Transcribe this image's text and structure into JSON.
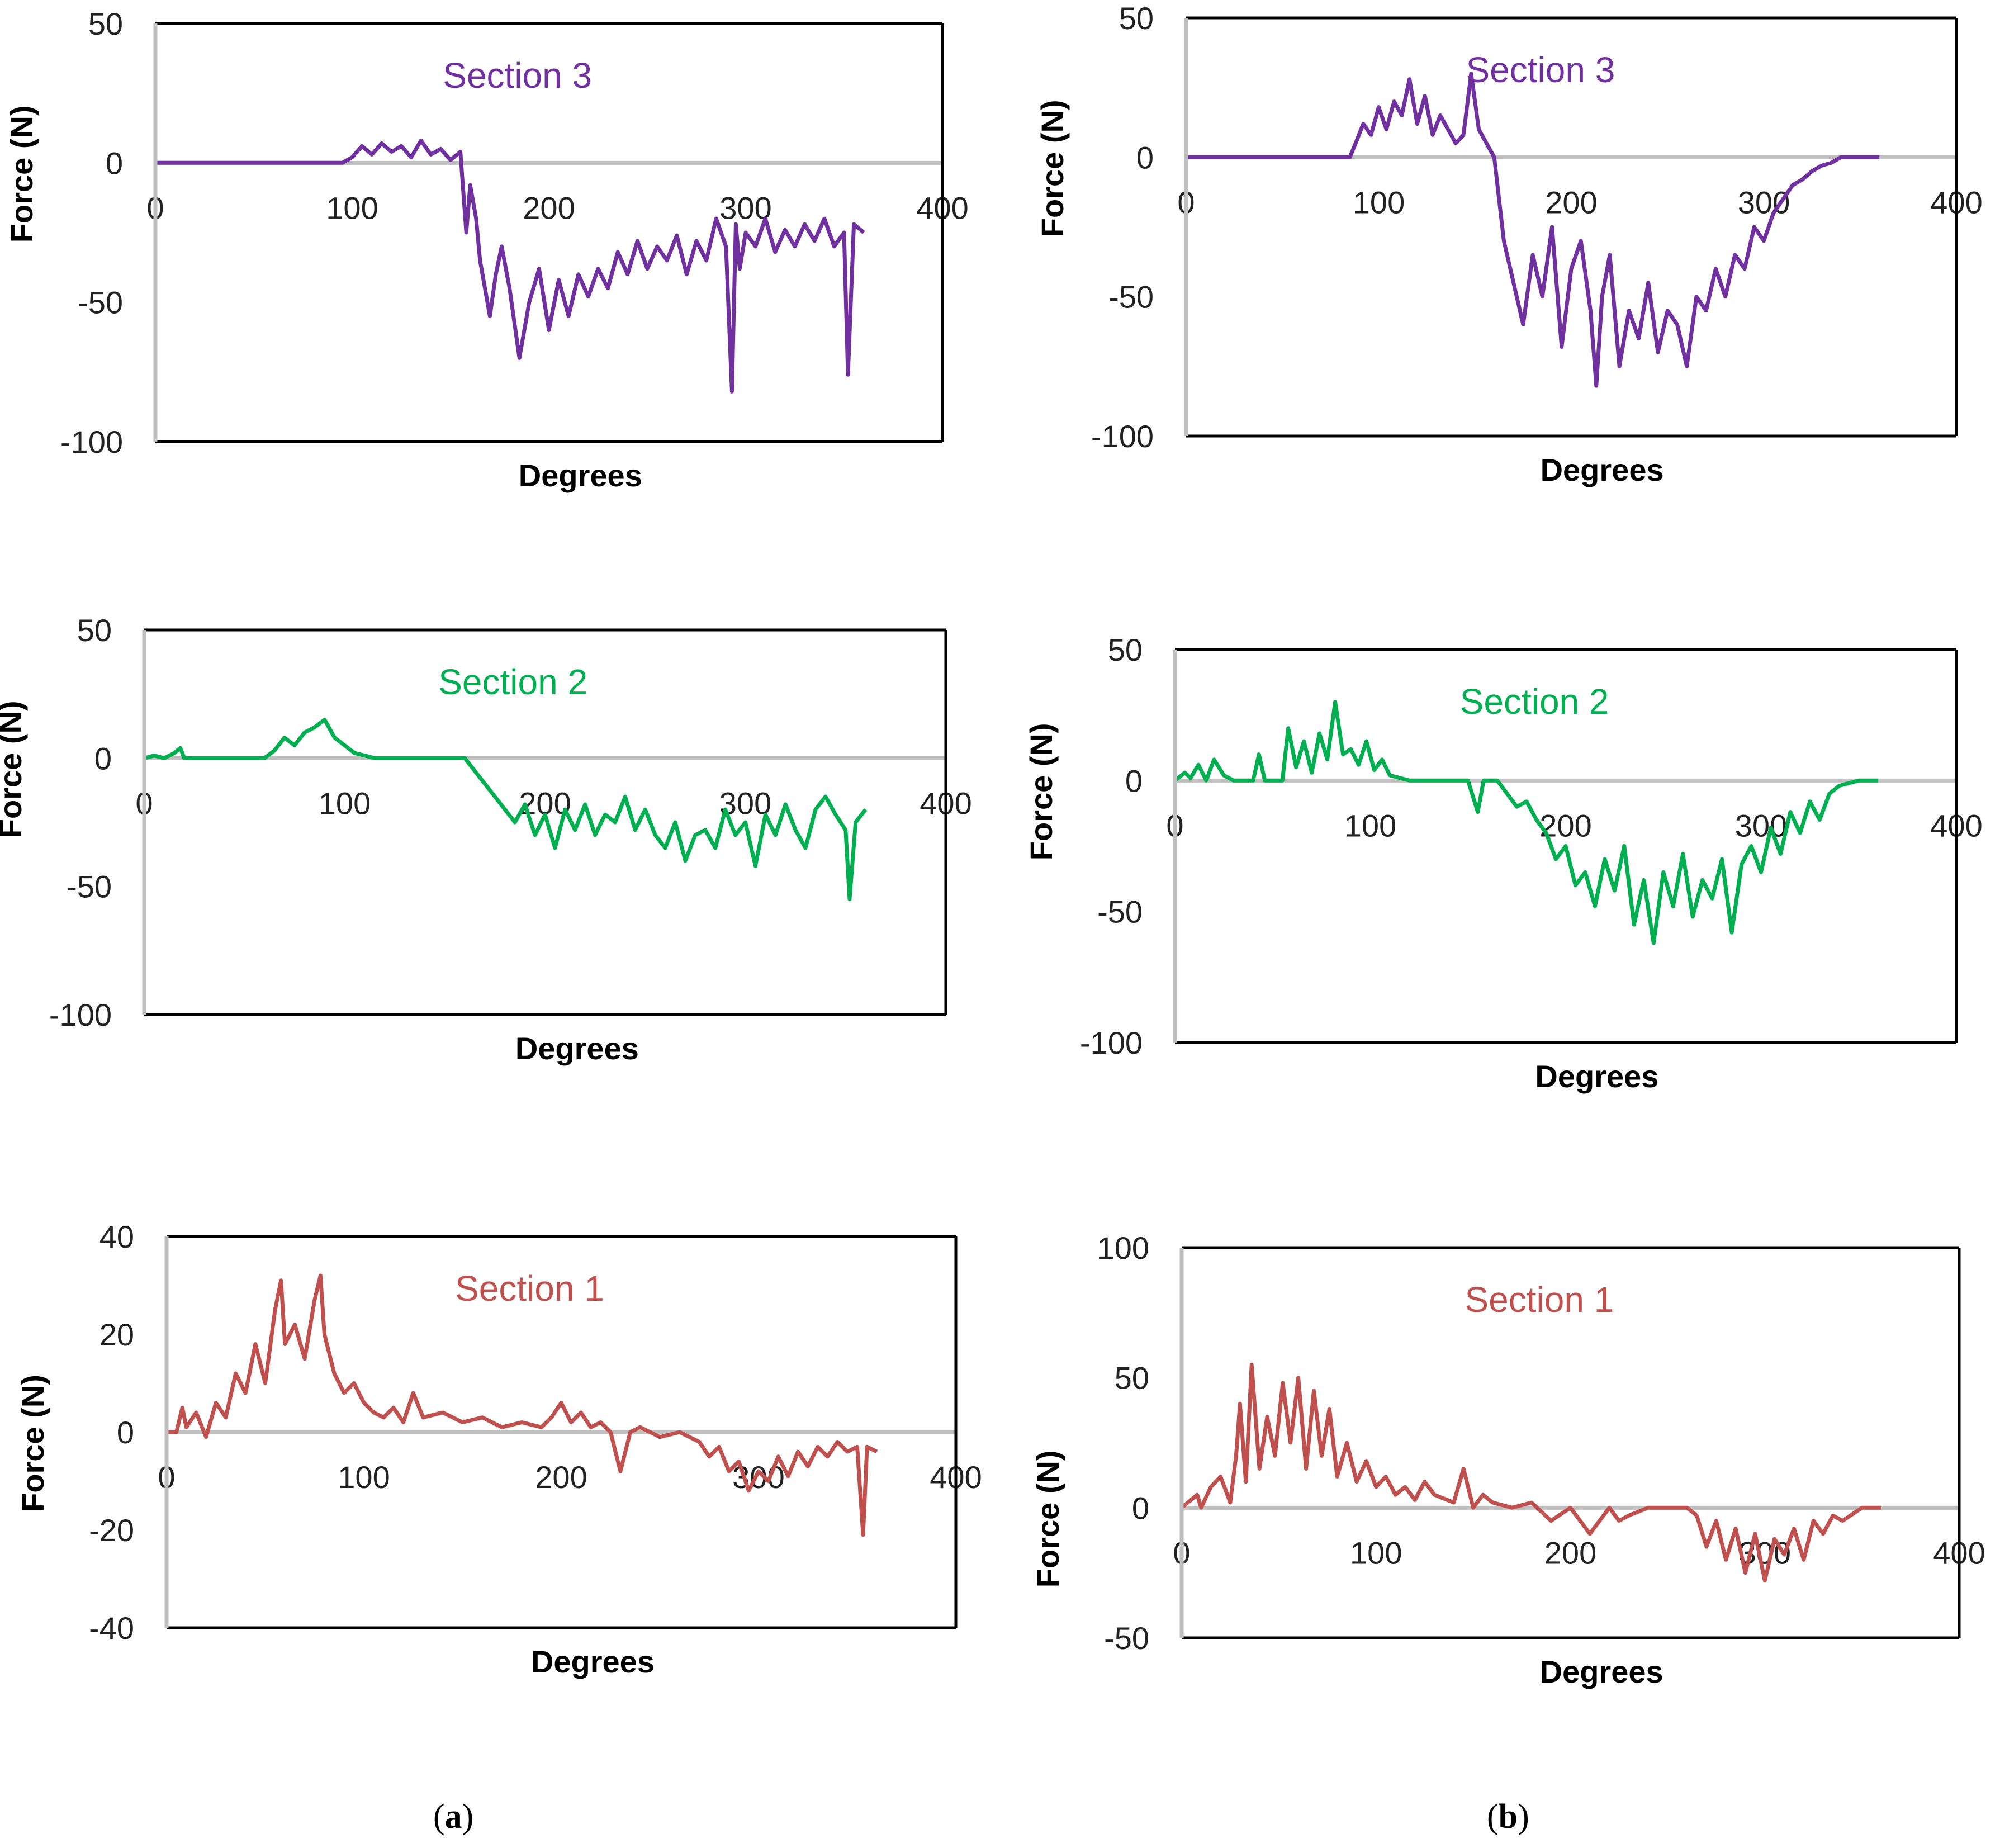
{
  "figure_labels": {
    "a": {
      "open": "(",
      "letter": "a",
      "close": ")"
    },
    "b": {
      "open": "(",
      "letter": "b",
      "close": ")"
    }
  },
  "colors": {
    "section3": "#7030A0",
    "section2": "#00B050",
    "section1": "#C0504D",
    "axis_zero": "#BFBFBF",
    "frame": "#000000"
  },
  "chart_data": [
    {
      "id": "a3",
      "type": "line",
      "title": "Section 3",
      "color": "section3",
      "xlabel": "Degrees",
      "ylabel": "Force (N)",
      "xlim": [
        0,
        400
      ],
      "ylim": [
        -100,
        50
      ],
      "xticks": [
        "0",
        "100",
        "200",
        "300",
        "400"
      ],
      "yticks": [
        "50",
        "0",
        "-50",
        "-100"
      ],
      "series": [
        {
          "name": "Section 3",
          "x": [
            0,
            95,
            100,
            105,
            110,
            115,
            120,
            125,
            130,
            135,
            140,
            145,
            150,
            155,
            158,
            160,
            163,
            165,
            170,
            173,
            176,
            180,
            185,
            190,
            195,
            200,
            205,
            210,
            215,
            220,
            225,
            230,
            235,
            240,
            245,
            250,
            255,
            260,
            265,
            270,
            275,
            280,
            285,
            290,
            293,
            295,
            297,
            300,
            305,
            310,
            315,
            320,
            325,
            330,
            335,
            340,
            345,
            350,
            352,
            355,
            360
          ],
          "y": [
            0,
            0,
            2,
            6,
            3,
            7,
            4,
            6,
            2,
            8,
            3,
            5,
            1,
            4,
            -25,
            -8,
            -20,
            -35,
            -55,
            -40,
            -30,
            -45,
            -70,
            -50,
            -38,
            -60,
            -42,
            -55,
            -40,
            -48,
            -38,
            -45,
            -32,
            -40,
            -28,
            -38,
            -30,
            -35,
            -26,
            -40,
            -28,
            -35,
            -20,
            -30,
            -82,
            -22,
            -38,
            -25,
            -30,
            -20,
            -32,
            -24,
            -30,
            -22,
            -28,
            -20,
            -30,
            -25,
            -76,
            -22,
            -25
          ]
        }
      ]
    },
    {
      "id": "a2",
      "type": "line",
      "title": "Section 2",
      "color": "section2",
      "xlabel": "Degrees",
      "ylabel": "Force (N)",
      "xlim": [
        0,
        400
      ],
      "ylim": [
        -100,
        50
      ],
      "xticks": [
        "0",
        "100",
        "200",
        "300",
        "400"
      ],
      "yticks": [
        "50",
        "0",
        "-50",
        "-100"
      ],
      "series": [
        {
          "name": "Section 2",
          "x": [
            0,
            5,
            10,
            15,
            18,
            20,
            25,
            60,
            65,
            70,
            75,
            80,
            85,
            90,
            95,
            100,
            105,
            110,
            115,
            120,
            160,
            165,
            170,
            175,
            180,
            185,
            190,
            195,
            200,
            205,
            210,
            215,
            220,
            225,
            230,
            235,
            240,
            245,
            250,
            255,
            260,
            265,
            270,
            275,
            280,
            285,
            290,
            295,
            300,
            305,
            310,
            315,
            320,
            325,
            330,
            335,
            340,
            345,
            350,
            352,
            355,
            360
          ],
          "y": [
            0,
            1,
            0,
            2,
            4,
            0,
            0,
            0,
            3,
            8,
            5,
            10,
            12,
            15,
            8,
            5,
            2,
            1,
            0,
            0,
            0,
            -5,
            -10,
            -15,
            -20,
            -25,
            -18,
            -30,
            -22,
            -35,
            -20,
            -28,
            -18,
            -30,
            -22,
            -25,
            -15,
            -28,
            -20,
            -30,
            -35,
            -25,
            -40,
            -30,
            -28,
            -35,
            -20,
            -30,
            -25,
            -42,
            -22,
            -30,
            -18,
            -28,
            -35,
            -20,
            -15,
            -22,
            -28,
            -55,
            -25,
            -20
          ]
        }
      ]
    },
    {
      "id": "a1",
      "type": "line",
      "title": "Section 1",
      "color": "section1",
      "xlabel": "Degrees",
      "ylabel": "Force (N)",
      "xlim": [
        0,
        400
      ],
      "ylim": [
        -40,
        40
      ],
      "xticks": [
        "0",
        "100",
        "200",
        "300",
        "400"
      ],
      "yticks": [
        "40",
        "20",
        "0",
        "-20",
        "-40"
      ],
      "series": [
        {
          "name": "Section 1",
          "x": [
            0,
            5,
            8,
            10,
            15,
            20,
            25,
            30,
            35,
            40,
            45,
            50,
            55,
            58,
            60,
            65,
            70,
            75,
            78,
            80,
            85,
            90,
            95,
            100,
            105,
            110,
            115,
            120,
            125,
            130,
            140,
            150,
            160,
            170,
            180,
            190,
            195,
            200,
            205,
            210,
            215,
            220,
            225,
            230,
            235,
            240,
            250,
            260,
            270,
            275,
            280,
            285,
            290,
            295,
            300,
            305,
            310,
            315,
            320,
            325,
            330,
            335,
            340,
            345,
            350,
            353,
            355,
            360
          ],
          "y": [
            0,
            0,
            5,
            1,
            4,
            -1,
            6,
            3,
            12,
            8,
            18,
            10,
            25,
            31,
            18,
            22,
            15,
            27,
            32,
            20,
            12,
            8,
            10,
            6,
            4,
            3,
            5,
            2,
            8,
            3,
            4,
            2,
            3,
            1,
            2,
            1,
            3,
            6,
            2,
            4,
            1,
            2,
            0,
            -8,
            0,
            1,
            -1,
            0,
            -2,
            -5,
            -3,
            -8,
            -6,
            -12,
            -8,
            -10,
            -5,
            -9,
            -4,
            -7,
            -3,
            -5,
            -2,
            -4,
            -3,
            -21,
            -3,
            -4
          ]
        }
      ]
    },
    {
      "id": "b3",
      "type": "line",
      "title": "Section 3",
      "color": "section3",
      "xlabel": "Degrees",
      "ylabel": "Force (N)",
      "xlim": [
        0,
        400
      ],
      "ylim": [
        -100,
        50
      ],
      "xticks": [
        "0",
        "100",
        "200",
        "300",
        "400"
      ],
      "yticks": [
        "50",
        "0",
        "-50",
        "-100"
      ],
      "series": [
        {
          "name": "Section 3",
          "x": [
            0,
            85,
            88,
            92,
            96,
            100,
            104,
            108,
            112,
            116,
            120,
            124,
            128,
            132,
            136,
            140,
            144,
            148,
            152,
            156,
            160,
            165,
            170,
            175,
            180,
            185,
            190,
            195,
            200,
            205,
            210,
            213,
            216,
            220,
            225,
            230,
            235,
            240,
            245,
            250,
            255,
            260,
            265,
            270,
            275,
            280,
            285,
            290,
            295,
            300,
            305,
            310,
            315,
            320,
            325,
            330,
            335,
            340,
            345,
            350,
            360
          ],
          "y": [
            0,
            0,
            5,
            12,
            8,
            18,
            10,
            20,
            15,
            28,
            12,
            22,
            8,
            15,
            10,
            5,
            8,
            30,
            10,
            5,
            0,
            -30,
            -45,
            -60,
            -35,
            -50,
            -25,
            -68,
            -40,
            -30,
            -55,
            -82,
            -50,
            -35,
            -75,
            -55,
            -65,
            -45,
            -70,
            -55,
            -60,
            -75,
            -50,
            -55,
            -40,
            -50,
            -35,
            -40,
            -25,
            -30,
            -20,
            -15,
            -10,
            -8,
            -5,
            -3,
            -2,
            0,
            0,
            0,
            0
          ]
        }
      ]
    },
    {
      "id": "b2",
      "type": "line",
      "title": "Section 2",
      "color": "section2",
      "xlabel": "Degrees",
      "ylabel": "Force (N)",
      "xlim": [
        0,
        400
      ],
      "ylim": [
        -100,
        50
      ],
      "xticks": [
        "0",
        "100",
        "200",
        "300",
        "400"
      ],
      "yticks": [
        "50",
        "0",
        "-50",
        "-100"
      ],
      "series": [
        {
          "name": "Section 2",
          "x": [
            0,
            5,
            8,
            12,
            16,
            20,
            25,
            30,
            40,
            43,
            46,
            50,
            55,
            58,
            62,
            66,
            70,
            74,
            78,
            82,
            86,
            90,
            94,
            98,
            102,
            106,
            110,
            120,
            150,
            155,
            158,
            165,
            170,
            175,
            180,
            185,
            190,
            195,
            200,
            205,
            210,
            215,
            220,
            225,
            230,
            235,
            240,
            245,
            250,
            255,
            260,
            265,
            270,
            275,
            280,
            285,
            290,
            295,
            300,
            305,
            310,
            315,
            320,
            325,
            330,
            335,
            340,
            350,
            360
          ],
          "y": [
            0,
            3,
            1,
            6,
            0,
            8,
            2,
            0,
            0,
            10,
            0,
            0,
            0,
            20,
            5,
            15,
            3,
            18,
            8,
            30,
            10,
            12,
            6,
            15,
            4,
            8,
            2,
            0,
            0,
            -12,
            0,
            0,
            -5,
            -10,
            -8,
            -15,
            -20,
            -30,
            -25,
            -40,
            -35,
            -48,
            -30,
            -42,
            -25,
            -55,
            -38,
            -62,
            -35,
            -48,
            -28,
            -52,
            -38,
            -45,
            -30,
            -58,
            -32,
            -25,
            -35,
            -18,
            -28,
            -12,
            -20,
            -8,
            -15,
            -5,
            -2,
            0,
            0
          ]
        }
      ]
    },
    {
      "id": "b1",
      "type": "line",
      "title": "Section 1",
      "color": "section1",
      "xlabel": "Degrees",
      "ylabel": "Force (N)",
      "xlim": [
        0,
        400
      ],
      "ylim": [
        -50,
        100
      ],
      "xticks": [
        "0",
        "100",
        "200",
        "300",
        "400"
      ],
      "yticks": [
        "100",
        "50",
        "0",
        "-50"
      ],
      "series": [
        {
          "name": "Section 1",
          "x": [
            0,
            8,
            10,
            15,
            20,
            25,
            28,
            30,
            33,
            36,
            40,
            44,
            48,
            52,
            56,
            60,
            64,
            68,
            72,
            76,
            80,
            85,
            90,
            95,
            100,
            105,
            110,
            115,
            120,
            125,
            130,
            140,
            145,
            150,
            155,
            160,
            170,
            180,
            190,
            200,
            210,
            220,
            225,
            230,
            240,
            250,
            260,
            265,
            270,
            275,
            280,
            285,
            290,
            295,
            300,
            305,
            310,
            315,
            320,
            325,
            330,
            335,
            340,
            350,
            360
          ],
          "y": [
            0,
            5,
            0,
            8,
            12,
            2,
            20,
            40,
            10,
            55,
            15,
            35,
            20,
            48,
            25,
            50,
            15,
            45,
            20,
            38,
            12,
            25,
            10,
            18,
            8,
            12,
            5,
            8,
            3,
            10,
            5,
            2,
            15,
            0,
            5,
            2,
            0,
            2,
            -5,
            0,
            -10,
            0,
            -5,
            -3,
            0,
            0,
            0,
            -3,
            -15,
            -5,
            -20,
            -8,
            -25,
            -10,
            -28,
            -12,
            -18,
            -8,
            -20,
            -5,
            -10,
            -3,
            -5,
            0,
            0
          ]
        }
      ]
    }
  ]
}
